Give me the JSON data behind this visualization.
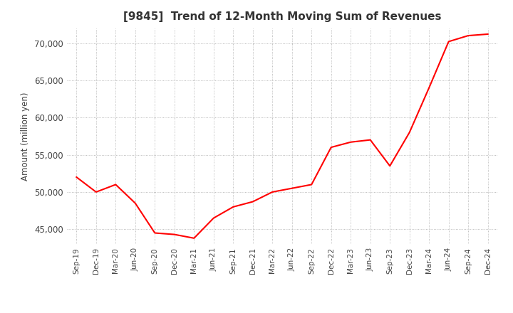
{
  "title": "[9845]  Trend of 12-Month Moving Sum of Revenues",
  "ylabel": "Amount (million yen)",
  "line_color": "#ff0000",
  "background_color": "#ffffff",
  "grid_color": "#aaaaaa",
  "ylim": [
    43000,
    72000
  ],
  "yticks": [
    45000,
    50000,
    55000,
    60000,
    65000,
    70000
  ],
  "x_labels": [
    "Sep-19",
    "Dec-19",
    "Mar-20",
    "Jun-20",
    "Sep-20",
    "Dec-20",
    "Mar-21",
    "Jun-21",
    "Sep-21",
    "Dec-21",
    "Mar-22",
    "Jun-22",
    "Sep-22",
    "Dec-22",
    "Mar-23",
    "Jun-23",
    "Sep-23",
    "Dec-23",
    "Mar-24",
    "Jun-24",
    "Sep-24",
    "Dec-24"
  ],
  "values": [
    52000,
    50000,
    51000,
    48500,
    44500,
    44300,
    43800,
    46500,
    48000,
    48700,
    50000,
    50500,
    51000,
    56000,
    56700,
    57000,
    53500,
    58000,
    64000,
    70200,
    71000,
    71200
  ]
}
